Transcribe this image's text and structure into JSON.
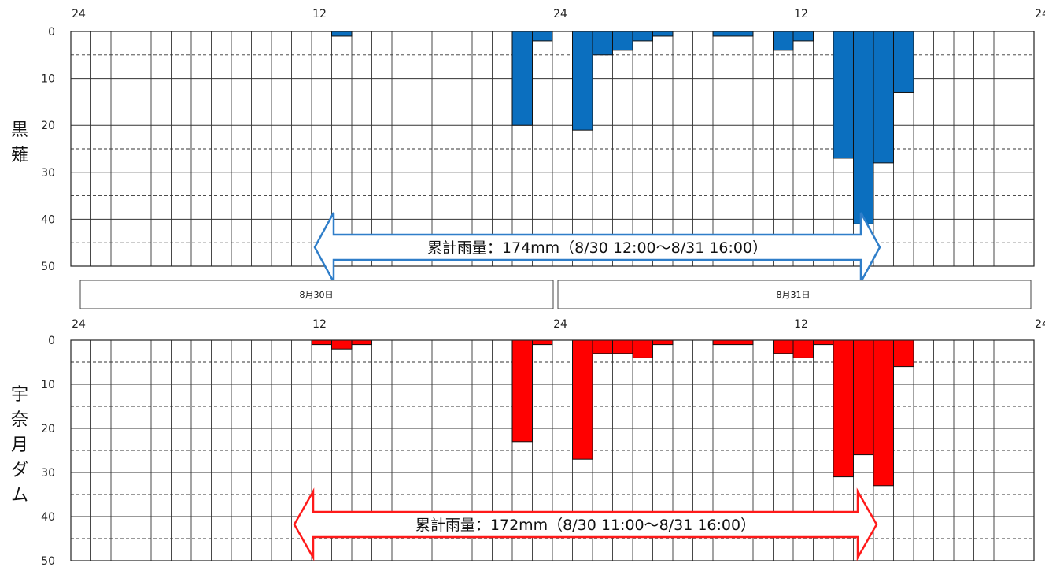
{
  "colors": {
    "kurobe": "#0b6fbf",
    "kurobe_arrow": "#2f7ec9",
    "unazuki": "#ff0000",
    "unazuki_arrow": "#ff1a1a"
  },
  "x_ticks": [
    "24",
    "12",
    "24",
    "12",
    "24"
  ],
  "y_ticks": [
    "0",
    "10",
    "20",
    "30",
    "40",
    "50"
  ],
  "date_labels": [
    "8月30日",
    "8月31日"
  ],
  "chart_data": [
    {
      "type": "bar",
      "station": "黒薙",
      "y_axis": "inverted",
      "ylim": [
        0,
        50
      ],
      "hours_shown": 48,
      "x": [
        13,
        22,
        23,
        25,
        26,
        27,
        28,
        29,
        32,
        33,
        35,
        36,
        38,
        39,
        40,
        41
      ],
      "values": [
        1,
        20,
        2,
        21,
        5,
        4,
        2,
        1,
        1,
        1,
        4,
        2,
        27,
        41,
        28,
        13
      ],
      "annotation": "累計雨量：174mm（8/30  12:00～8/31  16:00）"
    },
    {
      "type": "bar",
      "station": "宇奈月ダム",
      "y_axis": "inverted",
      "ylim": [
        0,
        50
      ],
      "hours_shown": 48,
      "x": [
        12,
        13,
        14,
        22,
        23,
        25,
        26,
        27,
        28,
        29,
        32,
        33,
        35,
        36,
        37,
        38,
        39,
        40,
        41
      ],
      "values": [
        1,
        2,
        1,
        23,
        1,
        27,
        3,
        3,
        4,
        1,
        1,
        1,
        3,
        4,
        1,
        31,
        26,
        33,
        6
      ],
      "annotation": "累計雨量：172mm（8/30  11:00～8/31  16:00）"
    }
  ]
}
